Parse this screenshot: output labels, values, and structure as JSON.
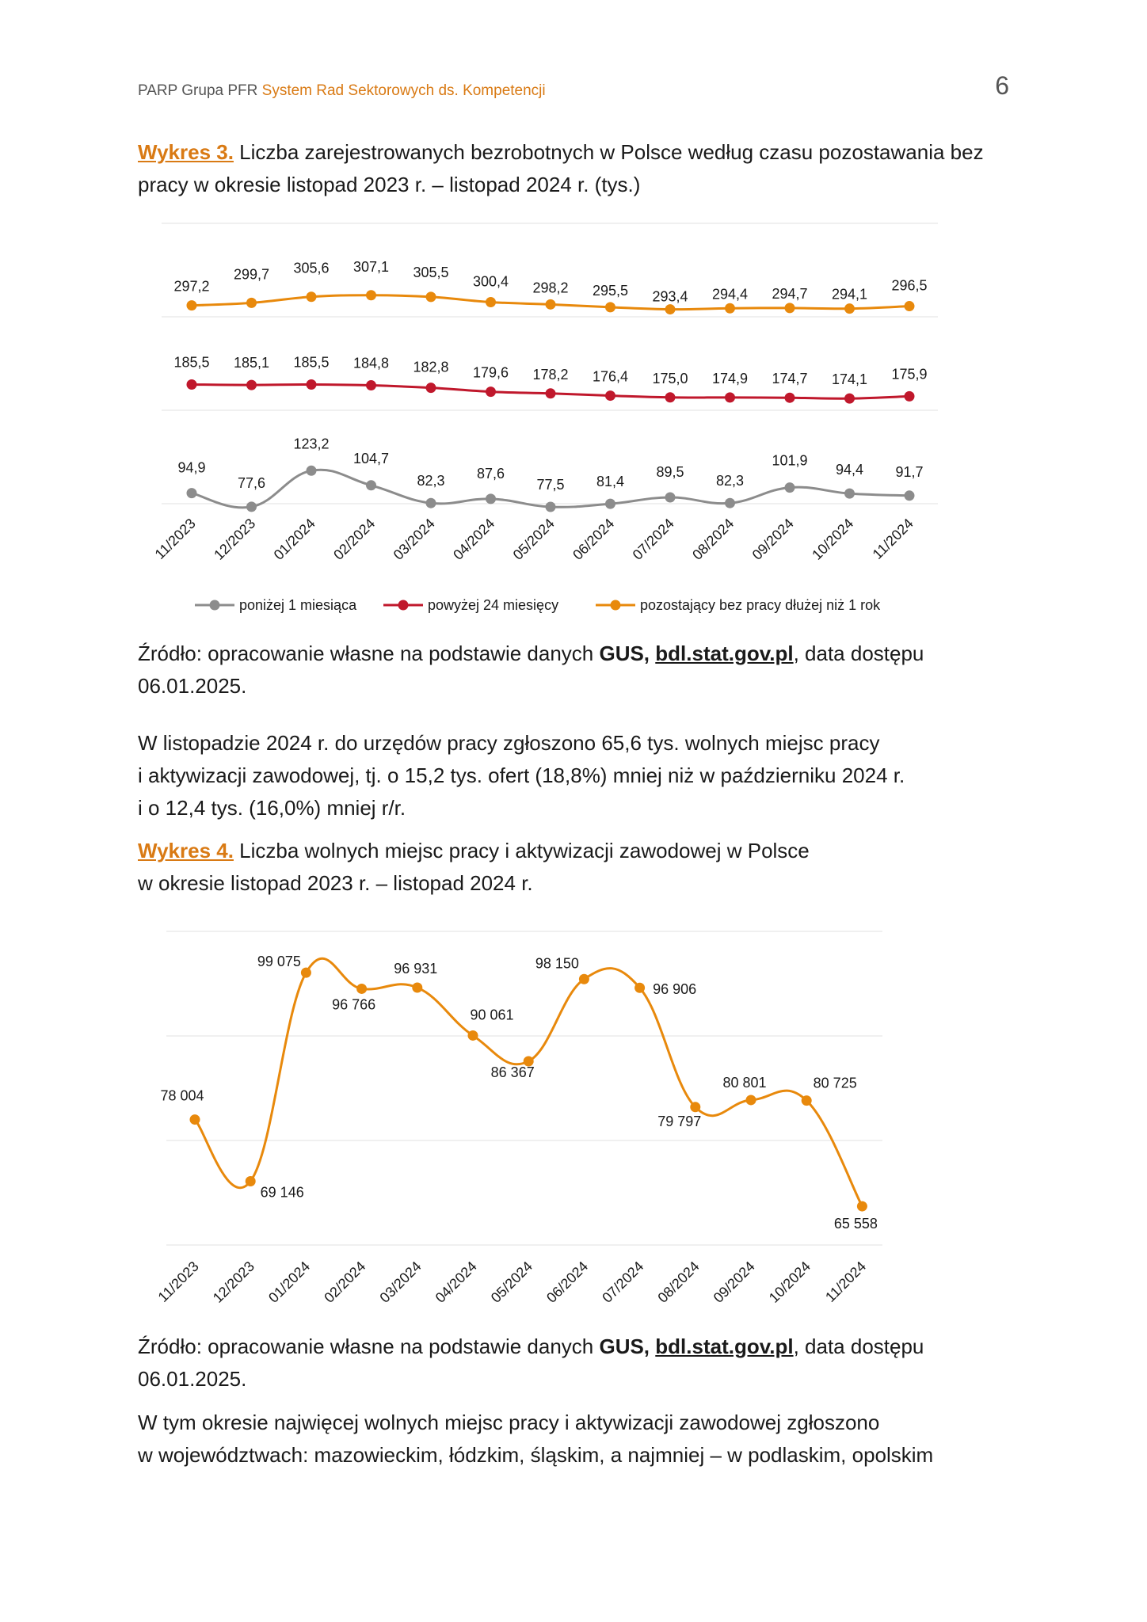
{
  "header": {
    "org": "PARP Grupa PFR",
    "system": "System Rad Sektorowych ds. Kompetencji",
    "page_number": "6"
  },
  "fig3_caption": {
    "label": "Wykres 3.",
    "line1": "Liczba zarejestrowanych bezrobotnych w Polsce według czasu pozostawania bez",
    "line2": "pracy w okresie listopad 2023 r. – listopad 2024 r. (tys.)"
  },
  "source1": {
    "prefix": "Źródło: opracowanie własne na podstawie danych ",
    "gus": "GUS,",
    "link": "bdl.stat.gov.pl",
    "suffix": ", data dostępu",
    "date": "06.01.2025."
  },
  "para1": {
    "line1": "W listopadzie 2024 r. do urzędów pracy zgłoszono 65,6 tys. wolnych miejsc pracy",
    "line2": "i aktywizacji zawodowej, tj. o 15,2 tys. ofert (18,8%) mniej niż w październiku 2024 r.",
    "line3": "i o 12,4 tys. (16,0%) mniej r/r."
  },
  "fig4_caption": {
    "label": "Wykres 4.",
    "line1": "Liczba wolnych miejsc pracy i aktywizacji zawodowej w Polsce",
    "line2": "w okresie listopad 2023 r. – listopad 2024 r."
  },
  "source2": {
    "prefix": "Źródło: opracowanie własne na podstawie danych ",
    "gus": "GUS,",
    "link": "bdl.stat.gov.pl",
    "suffix": ", data dostępu",
    "date": "06.01.2025."
  },
  "para2": {
    "line1": "W tym okresie najwięcej wolnych miejsc pracy i aktywizacji zawodowej zgłoszono",
    "line2": "w województwach: mazowieckim, łódzkim, śląskim, a najmniej – w podlaskim, opolskim"
  },
  "chart_data": [
    {
      "type": "line",
      "categories": [
        "11/2023",
        "12/2023",
        "01/2024",
        "02/2024",
        "03/2024",
        "04/2024",
        "05/2024",
        "06/2024",
        "07/2024",
        "08/2024",
        "09/2024",
        "10/2024",
        "11/2024"
      ],
      "series": [
        {
          "name": "pozostający bez pracy dłużej niż 1 rok",
          "color": "#E8890C",
          "values": [
            297.2,
            299.7,
            305.6,
            307.1,
            305.5,
            300.4,
            298.2,
            295.5,
            293.4,
            294.4,
            294.7,
            294.1,
            296.5
          ],
          "labels": [
            "297,2",
            "299,7",
            "305,6",
            "307,1",
            "305,5",
            "300,4",
            "298,2",
            "295,5",
            "293,4",
            "294,4",
            "294,7",
            "294,1",
            "296,5"
          ]
        },
        {
          "name": "powyżej 24 miesięcy",
          "color": "#C0182C",
          "values": [
            185.5,
            185.1,
            185.5,
            184.8,
            182.8,
            179.6,
            178.2,
            176.4,
            175.0,
            174.9,
            174.7,
            174.1,
            175.9
          ],
          "labels": [
            "185,5",
            "185,1",
            "185,5",
            "184,8",
            "182,8",
            "179,6",
            "178,2",
            "176,4",
            "175,0",
            "174,9",
            "174,7",
            "174,1",
            "175,9"
          ]
        },
        {
          "name": "poniżej 1 miesiąca",
          "color": "#8C8C8C",
          "values": [
            94.9,
            77.6,
            123.2,
            104.7,
            82.3,
            87.6,
            77.5,
            81.4,
            89.5,
            82.3,
            101.9,
            94.4,
            91.7
          ],
          "labels": [
            "94,9",
            "77,6",
            "123,2",
            "104,7",
            "82,3",
            "87,6",
            "77,5",
            "81,4",
            "89,5",
            "82,3",
            "101,9",
            "94,4",
            "91,7"
          ]
        }
      ],
      "legend_order": [
        "poniżej 1 miesiąca",
        "powyżej 24 miesięcy",
        "pozostający bez pracy dłużej niż 1 rok"
      ],
      "legend_position": "bottom"
    },
    {
      "type": "line",
      "categories": [
        "11/2023",
        "12/2023",
        "01/2024",
        "02/2024",
        "03/2024",
        "04/2024",
        "05/2024",
        "06/2024",
        "07/2024",
        "08/2024",
        "09/2024",
        "10/2024",
        "11/2024"
      ],
      "series": [
        {
          "color": "#E8890C",
          "values": [
            78004,
            69146,
            99075,
            96766,
            96931,
            90061,
            86367,
            98150,
            96906,
            79797,
            80801,
            80725,
            65558
          ],
          "labels": [
            "78 004",
            "69 146",
            "99 075",
            "96 766",
            "96 931",
            "90 061",
            "86 367",
            "98 150",
            "96 906",
            "79 797",
            "80 801",
            "80 725",
            "65 558"
          ]
        }
      ],
      "ylim": [
        60000,
        105000
      ],
      "grid": true
    }
  ]
}
